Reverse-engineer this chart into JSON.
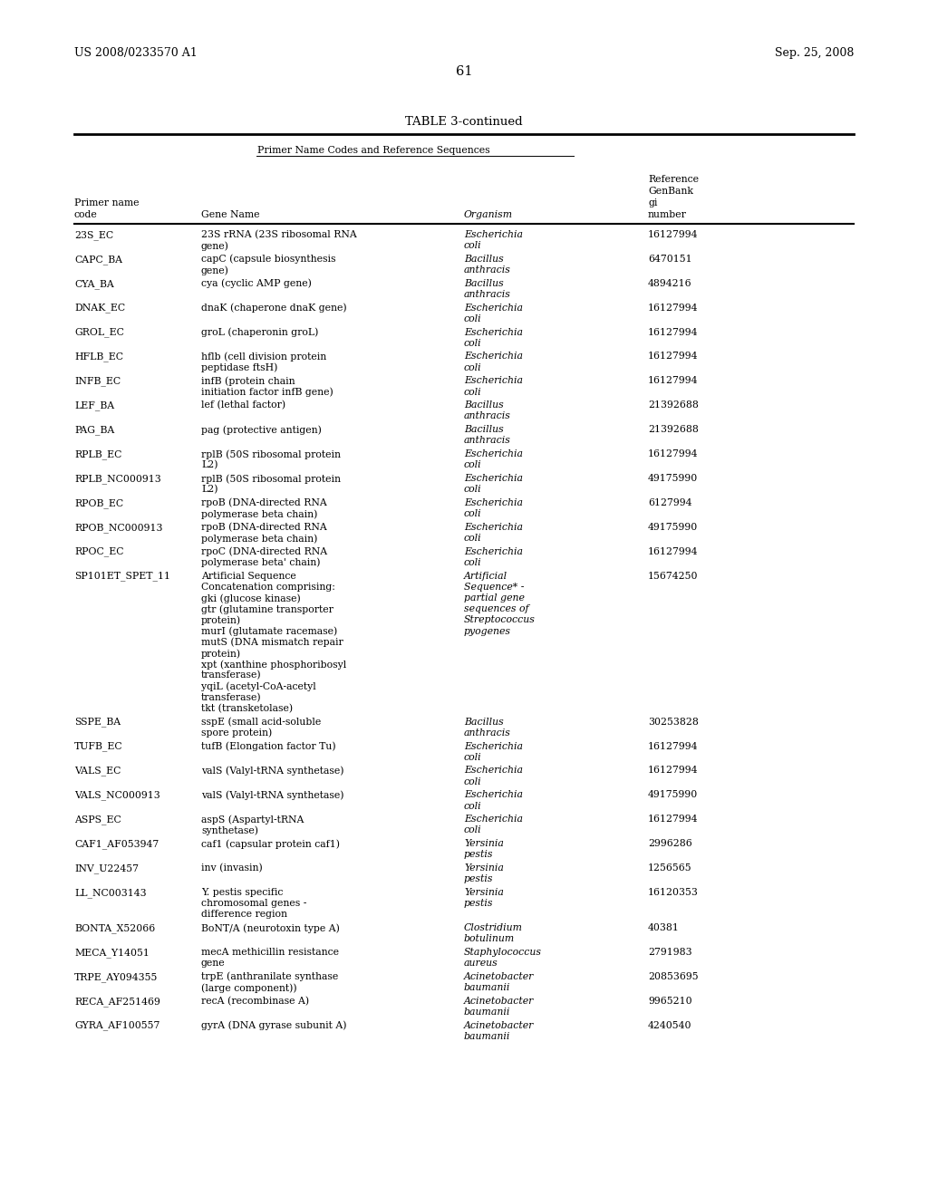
{
  "page_header_left": "US 2008/0233570 A1",
  "page_header_right": "Sep. 25, 2008",
  "page_number": "61",
  "table_title": "TABLE 3-continued",
  "table_subtitle": "Primer Name Codes and Reference Sequences",
  "bg_color": "#ffffff",
  "rows": [
    [
      "23S_EC",
      "23S rRNA (23S ribosomal RNA\ngene)",
      "Escherichia\ncoli",
      "16127994"
    ],
    [
      "CAPC_BA",
      "capC (capsule biosynthesis\ngene)",
      "Bacillus\nanthracis",
      "6470151"
    ],
    [
      "CYA_BA",
      "cya (cyclic AMP gene)",
      "Bacillus\nanthracis",
      "4894216"
    ],
    [
      "DNAK_EC",
      "dnaK (chaperone dnaK gene)",
      "Escherichia\ncoli",
      "16127994"
    ],
    [
      "GROL_EC",
      "groL (chaperonin groL)",
      "Escherichia\ncoli",
      "16127994"
    ],
    [
      "HFLB_EC",
      "hflb (cell division protein\npeptidase ftsH)",
      "Escherichia\ncoli",
      "16127994"
    ],
    [
      "INFB_EC",
      "infB (protein chain\ninitiation factor infB gene)",
      "Escherichia\ncoli",
      "16127994"
    ],
    [
      "LEF_BA",
      "lef (lethal factor)",
      "Bacillus\nanthracis",
      "21392688"
    ],
    [
      "PAG_BA",
      "pag (protective antigen)",
      "Bacillus\nanthracis",
      "21392688"
    ],
    [
      "RPLB_EC",
      "rplB (50S ribosomal protein\nL2)",
      "Escherichia\ncoli",
      "16127994"
    ],
    [
      "RPLB_NC000913",
      "rplB (50S ribosomal protein\nL2)",
      "Escherichia\ncoli",
      "49175990"
    ],
    [
      "RPOB_EC",
      "rpoB (DNA-directed RNA\npolymerase beta chain)",
      "Escherichia\ncoli",
      "6127994"
    ],
    [
      "RPOB_NC000913",
      "rpoB (DNA-directed RNA\npolymerase beta chain)",
      "Escherichia\ncoli",
      "49175990"
    ],
    [
      "RPOC_EC",
      "rpoC (DNA-directed RNA\npolymerase beta' chain)",
      "Escherichia\ncoli",
      "16127994"
    ],
    [
      "SP101ET_SPET_11",
      "Artificial Sequence\nConcatenation comprising:\ngki (glucose kinase)\ngtr (glutamine transporter\nprotein)\nmurI (glutamate racemase)\nmutS (DNA mismatch repair\nprotein)\nxpt (xanthine phosphoribosyl\ntransferase)\nyqiL (acetyl-CoA-acetyl\ntransferase)\ntkt (transketolase)",
      "Artificial\nSequence* -\npartial gene\nsequences of\nStreptococcus\npyogenes",
      "15674250"
    ],
    [
      "SSPE_BA",
      "sspE (small acid-soluble\nspore protein)",
      "Bacillus\nanthracis",
      "30253828"
    ],
    [
      "TUFB_EC",
      "tufB (Elongation factor Tu)",
      "Escherichia\ncoli",
      "16127994"
    ],
    [
      "VALS_EC",
      "valS (Valyl-tRNA synthetase)",
      "Escherichia\ncoli",
      "16127994"
    ],
    [
      "VALS_NC000913",
      "valS (Valyl-tRNA synthetase)",
      "Escherichia\ncoli",
      "49175990"
    ],
    [
      "ASPS_EC",
      "aspS (Aspartyl-tRNA\nsynthetase)",
      "Escherichia\ncoli",
      "16127994"
    ],
    [
      "CAF1_AF053947",
      "caf1 (capsular protein caf1)",
      "Yersinia\npestis",
      "2996286"
    ],
    [
      "INV_U22457",
      "inv (invasin)",
      "Yersinia\npestis",
      "1256565"
    ],
    [
      "LL_NC003143",
      "Y. pestis specific\nchromosomal genes -\ndifference region",
      "Yersinia\npestis",
      "16120353"
    ],
    [
      "BONTA_X52066",
      "BoNT/A (neurotoxin type A)",
      "Clostridium\nbotulinum",
      "40381"
    ],
    [
      "MECA_Y14051",
      "mecA methicillin resistance\ngene",
      "Staphylococcus\naureus",
      "2791983"
    ],
    [
      "TRPE_AY094355",
      "trpE (anthranilate synthase\n(large component))",
      "Acinetobacter\nbaumanii",
      "20853695"
    ],
    [
      "RECA_AF251469",
      "recA (recombinase A)",
      "Acinetobacter\nbaumanii",
      "9965210"
    ],
    [
      "GYRA_AF100557",
      "gyrA (DNA gyrase subunit A)",
      "Acinetobacter\nbaumanii",
      "4240540"
    ]
  ]
}
